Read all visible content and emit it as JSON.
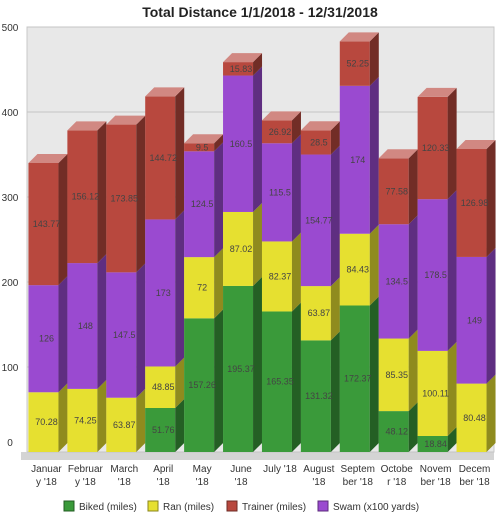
{
  "chart_data": {
    "type": "bar",
    "stacked": true,
    "three_d": true,
    "title": "Total Distance 1/1/2018 - 12/31/2018",
    "xlabel": "",
    "ylabel": "",
    "ylim": [
      0,
      500
    ],
    "yticks": [
      "0",
      "100",
      "200",
      "300",
      "400",
      "500"
    ],
    "grid": true,
    "legend_position": "bottom",
    "categories": [
      [
        "Januar",
        "y '18"
      ],
      [
        "Februar",
        "y '18"
      ],
      [
        "March",
        "'18"
      ],
      [
        "April",
        "'18"
      ],
      [
        "May",
        "'18"
      ],
      [
        "June",
        "'18"
      ],
      [
        "July '18"
      ],
      [
        "August",
        "'18"
      ],
      [
        "Septem",
        "ber '18"
      ],
      [
        "Octobe",
        "r '18"
      ],
      [
        "Novem",
        "ber '18"
      ],
      [
        "Decem",
        "ber '18"
      ]
    ],
    "series": [
      {
        "name": "Biked (miles)",
        "color": "#3a9a3a",
        "values": [
          0,
          0,
          0,
          51.76,
          157.26,
          195.37,
          165.35,
          131.32,
          172.37,
          48.12,
          18.84,
          0
        ],
        "labels": [
          "",
          "",
          "",
          "51.76",
          "157.26",
          "195.37",
          "165.35",
          "131.32",
          "172.37",
          "48.12",
          "18.84",
          ""
        ]
      },
      {
        "name": "Ran (miles)",
        "color": "#e6e030",
        "values": [
          70.28,
          74.25,
          63.87,
          48.85,
          72,
          87.02,
          82.37,
          63.87,
          84.43,
          85.35,
          100.11,
          80.48
        ],
        "labels": [
          "70.28",
          "74.25",
          "63.87",
          "48.85",
          "72",
          "87.02",
          "82.37",
          "63.87",
          "84.43",
          "85.35",
          "100.11",
          "80.48"
        ]
      },
      {
        "name": "Swam (x100 yards)",
        "color": "#9a4ad0",
        "values": [
          126,
          148,
          147.5,
          173,
          124.5,
          160.5,
          115.5,
          154.77,
          174,
          134.5,
          178.5,
          149
        ],
        "labels": [
          "126",
          "148",
          "147.5",
          "173",
          "124.5",
          "160.5",
          "115.5",
          "154.77",
          "174",
          "134.5",
          "178.5",
          "149"
        ]
      },
      {
        "name": "Trainer (miles)",
        "color": "#b8483e",
        "values": [
          143.77,
          156.12,
          173.85,
          144.72,
          9.5,
          15.83,
          26.92,
          28.5,
          52.25,
          77.58,
          120.33,
          126.98
        ],
        "labels": [
          "143.77",
          "156.12",
          "173.85",
          "144.72",
          "9.5",
          "15.83",
          "26.92",
          "28.5",
          "52.25",
          "77.58",
          "120.33",
          "126.98"
        ]
      }
    ],
    "legend_order": [
      "Biked (miles)",
      "Ran (miles)",
      "Trainer (miles)",
      "Swam (x100 yards)"
    ]
  }
}
